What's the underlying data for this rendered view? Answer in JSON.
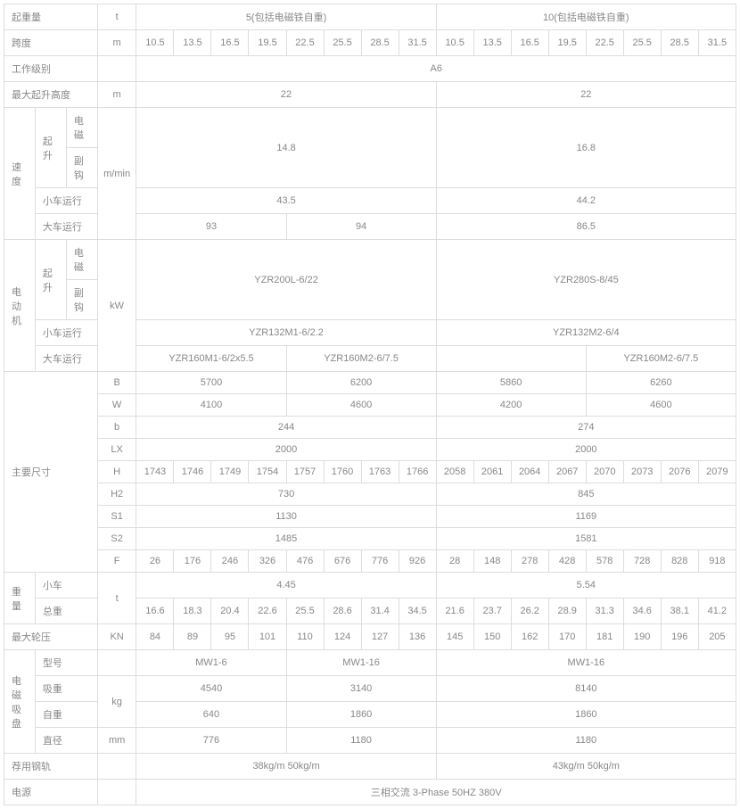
{
  "colors": {
    "border": "#ddd",
    "text": "#888",
    "background": "#ffffff"
  },
  "headers": {
    "lifting_capacity": "起重量",
    "span": "跨度",
    "work_level": "工作级别",
    "max_lift_height": "最大起升高度",
    "speed": "速度",
    "motor": "电动机",
    "main_dim": "主要尺寸",
    "weight": "重量",
    "max_wheel_load": "最大轮压",
    "electromagnet": "电磁吸盘",
    "rail": "荐用钢轨",
    "power": "电源",
    "hoist": "起升",
    "main_hook": "电磁",
    "aux_hook": "副钩",
    "trolley_travel": "小车运行",
    "crane_travel": "大车运行",
    "trolley": "小车",
    "total_weight": "总重",
    "model": "型号",
    "suction": "吸重",
    "self_weight": "自重",
    "diameter": "直径"
  },
  "units": {
    "t": "t",
    "m": "m",
    "mmin": "m/min",
    "kw": "kW",
    "kn": "KN",
    "kg": "kg",
    "mm": "mm",
    "B": "B",
    "W": "W",
    "b": "b",
    "LX": "LX",
    "H": "H",
    "H2": "H2",
    "S1": "S1",
    "S2": "S2",
    "F": "F"
  },
  "capacity": {
    "c5": "5(包括电磁铁自重)",
    "c10": "10(包括电磁铁自重)"
  },
  "spans": [
    "10.5",
    "13.5",
    "16.5",
    "19.5",
    "22.5",
    "25.5",
    "28.5",
    "31.5",
    "10.5",
    "13.5",
    "16.5",
    "19.5",
    "22.5",
    "25.5",
    "28.5",
    "31.5"
  ],
  "work_level": "A6",
  "max_height": {
    "c5": "22",
    "c10": "22"
  },
  "speed": {
    "hoist": {
      "c5": "14.8",
      "c10": "16.8"
    },
    "trolley": {
      "c5": "43.5",
      "c10": "44.2"
    },
    "crane": {
      "c5a": "93",
      "c5b": "94",
      "c10": "86.5"
    }
  },
  "motor": {
    "hoist": {
      "c5": "YZR200L-6/22",
      "c10": "YZR280S-8/45"
    },
    "trolley": {
      "c5": "YZR132M1-6/2.2",
      "c10": "YZR132M2-6/4"
    },
    "crane": {
      "c5a": "YZR160M1-6/2x5.5",
      "c5b": "YZR160M2-6/7.5",
      "c10a": "",
      "c10b": "YZR160M2-6/7.5"
    }
  },
  "dim": {
    "B": {
      "c5a": "5700",
      "c5b": "6200",
      "c10a": "5860",
      "c10b": "6260"
    },
    "W": {
      "c5a": "4100",
      "c5b": "4600",
      "c10a": "4200",
      "c10b": "4600"
    },
    "b": {
      "c5": "244",
      "c10": "274"
    },
    "LX": {
      "c5": "2000",
      "c10": "2000"
    },
    "H": [
      "1743",
      "1746",
      "1749",
      "1754",
      "1757",
      "1760",
      "1763",
      "1766",
      "2058",
      "2061",
      "2064",
      "2067",
      "2070",
      "2073",
      "2076",
      "2079"
    ],
    "H2": {
      "c5": "730",
      "c10": "845"
    },
    "S1": {
      "c5": "1130",
      "c10": "1169"
    },
    "S2": {
      "c5": "1485",
      "c10": "1581"
    },
    "F": [
      "26",
      "176",
      "246",
      "326",
      "476",
      "676",
      "776",
      "926",
      "28",
      "148",
      "278",
      "428",
      "578",
      "728",
      "828",
      "918"
    ]
  },
  "weight": {
    "trolley": {
      "c5": "4.45",
      "c10": "5.54"
    },
    "total": [
      "16.6",
      "18.3",
      "20.4",
      "22.6",
      "25.5",
      "28.6",
      "31.4",
      "34.5",
      "21.6",
      "23.7",
      "26.2",
      "28.9",
      "31.3",
      "34.6",
      "38.1",
      "41.2"
    ]
  },
  "wheel_load": [
    "84",
    "89",
    "95",
    "101",
    "110",
    "124",
    "127",
    "136",
    "145",
    "150",
    "162",
    "170",
    "181",
    "190",
    "196",
    "205"
  ],
  "electromagnet": {
    "model": {
      "c5a": "MW1-6",
      "c5b": "MW1-16",
      "c10": "MW1-16"
    },
    "suction": {
      "c5a": "4540",
      "c5b": "3140",
      "c10": "8140"
    },
    "self_weight": {
      "c5a": "640",
      "c5b": "1860",
      "c10": "1860"
    },
    "diameter": {
      "c5a": "776",
      "c5b": "1180",
      "c10": "1180"
    }
  },
  "rail": {
    "c5": "38kg/m   50kg/m",
    "c10": "43kg/m   50kg/m"
  },
  "power_value": "三相交流 3-Phase   50HZ   380V"
}
